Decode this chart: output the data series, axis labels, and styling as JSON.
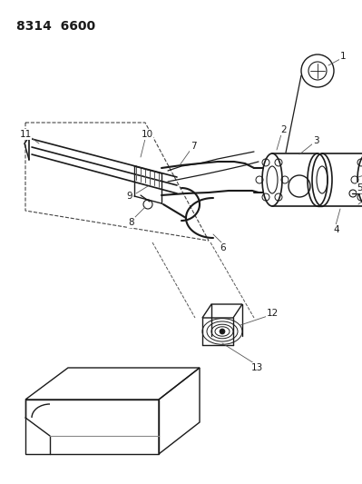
{
  "title": "8314  6600",
  "bg_color": "#ffffff",
  "line_color": "#1a1a1a",
  "title_fontsize": 10,
  "label_fontsize": 7.5,
  "dpi": 100,
  "figsize": [
    3.99,
    5.33
  ]
}
